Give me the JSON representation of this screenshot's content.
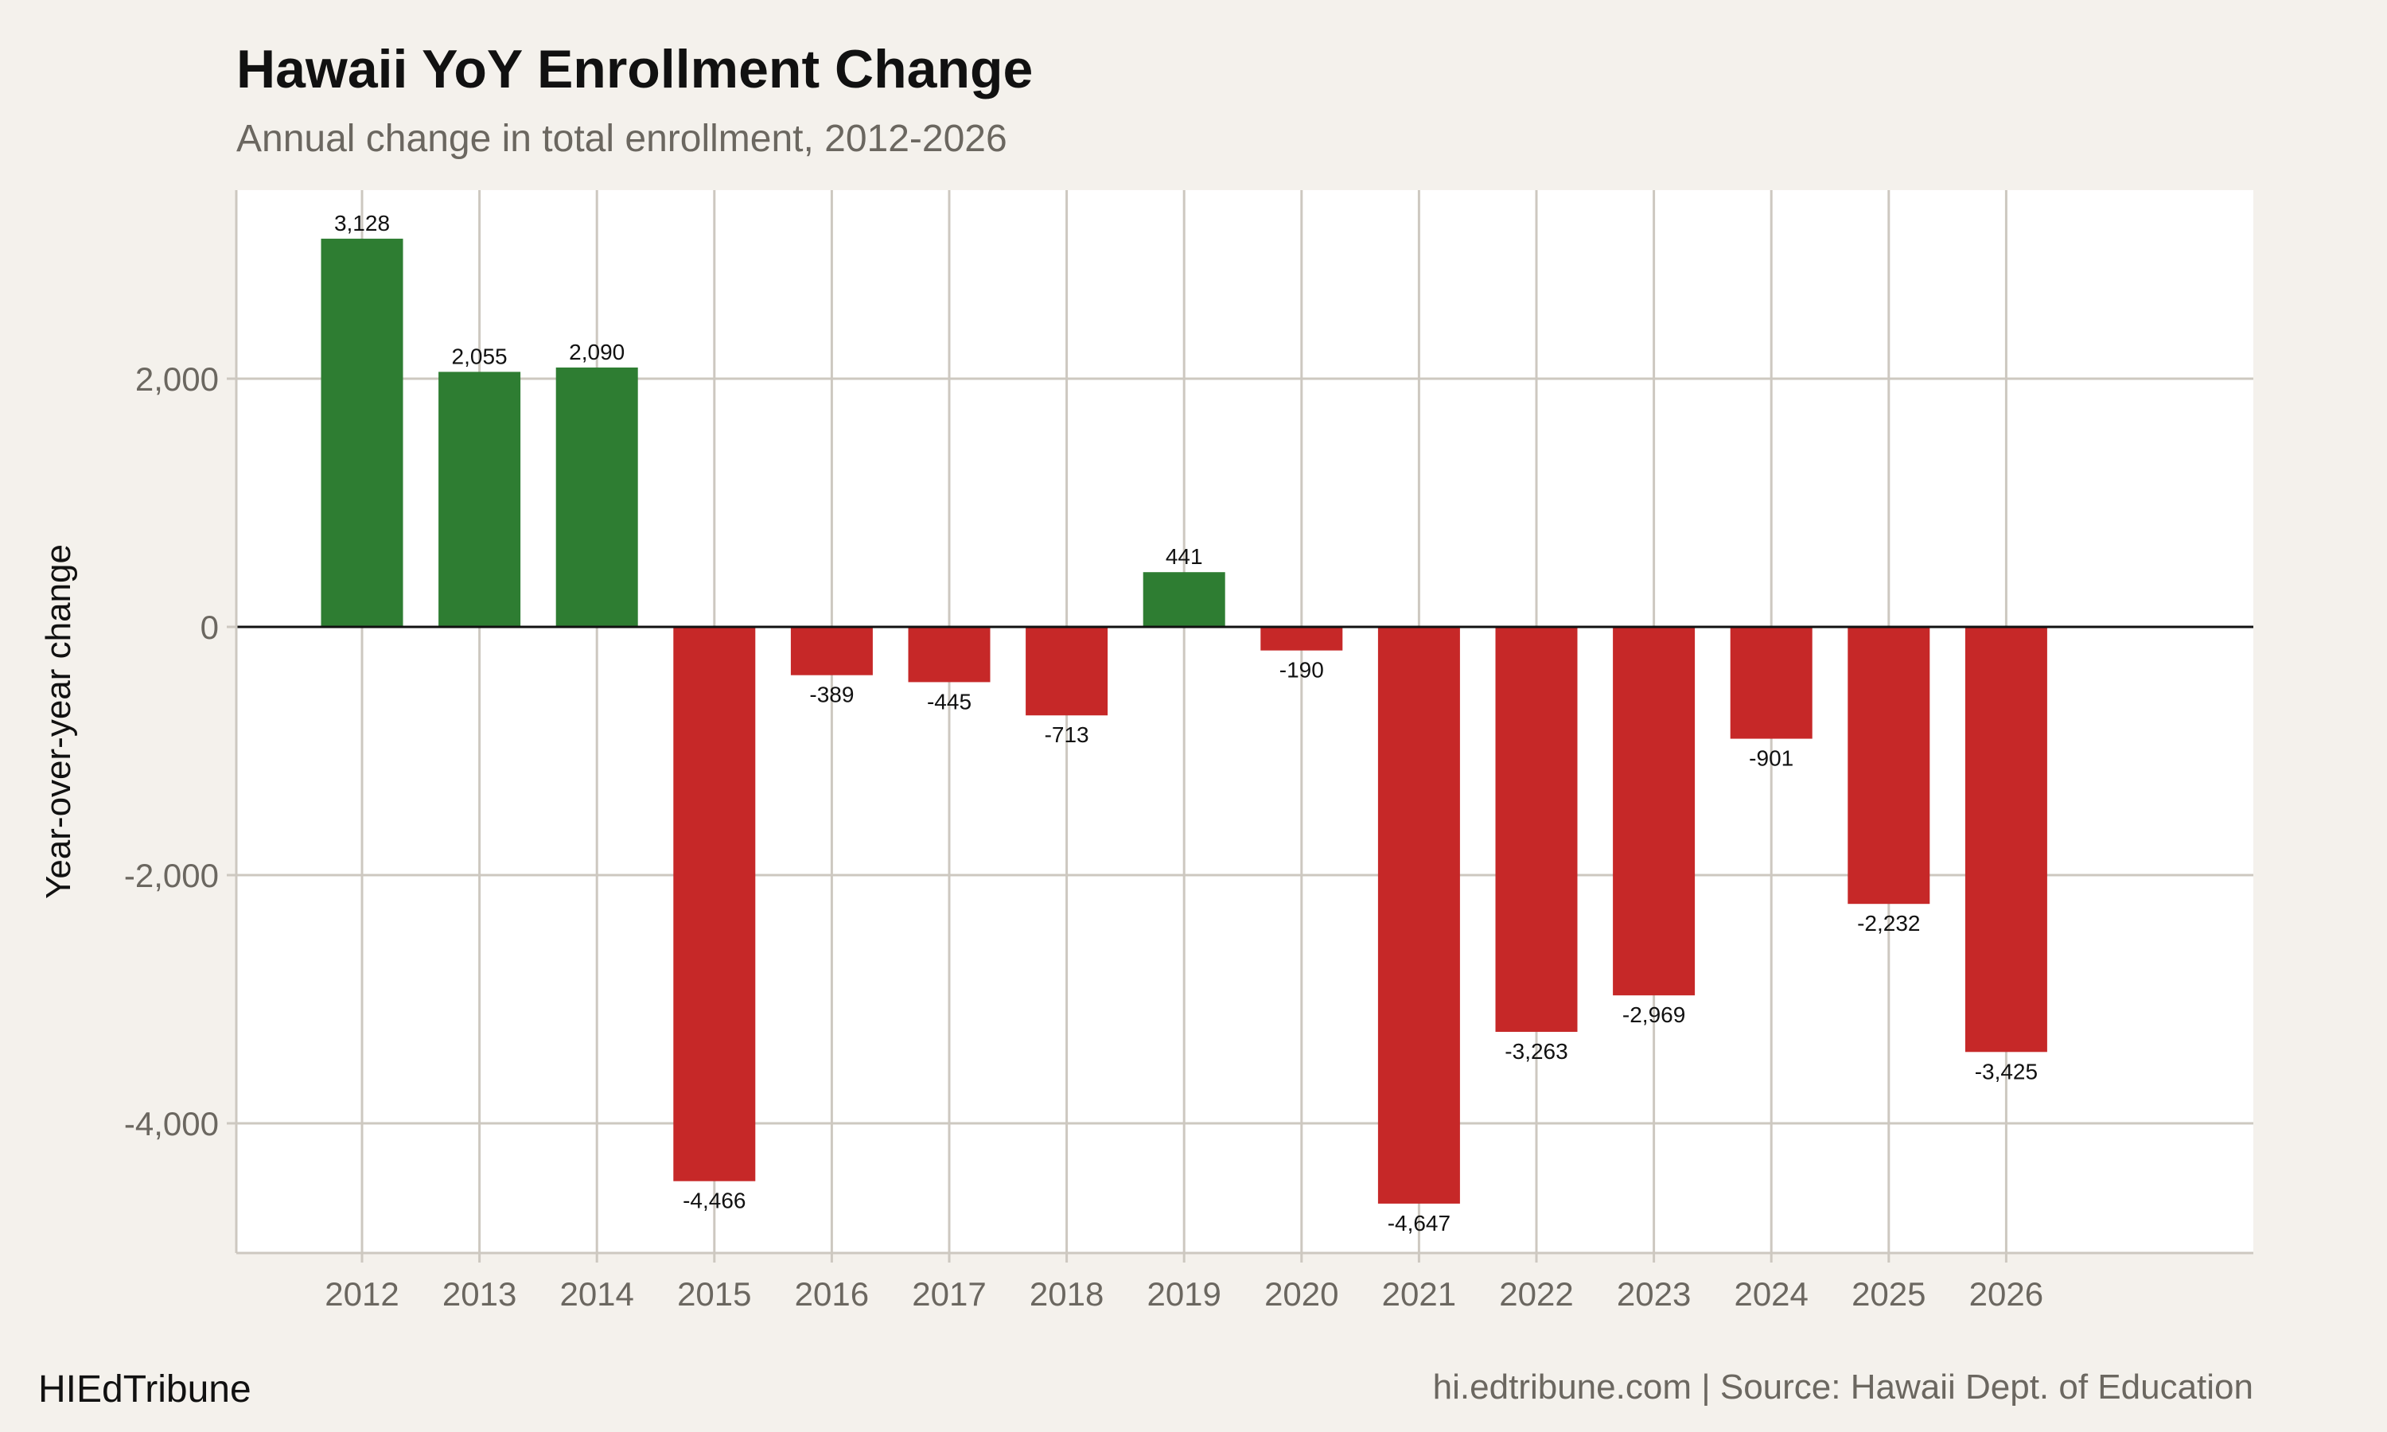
{
  "chart_data": {
    "type": "bar",
    "title": "Hawaii YoY Enrollment Change",
    "subtitle": "Annual change in total enrollment, 2012-2026",
    "xlabel": "",
    "ylabel": "Year-over-year change",
    "categories": [
      "2012",
      "2013",
      "2014",
      "2015",
      "2016",
      "2017",
      "2018",
      "2019",
      "2020",
      "2021",
      "2022",
      "2023",
      "2024",
      "2025",
      "2026"
    ],
    "values": [
      3128,
      2055,
      2090,
      -4466,
      -389,
      -445,
      -713,
      441,
      -190,
      -4647,
      -3263,
      -2969,
      -901,
      -2232,
      -3425
    ],
    "data_labels": [
      "3,128",
      "2,055",
      "2,090",
      "-4,466",
      "-389",
      "-445",
      "-713",
      "441",
      "-190",
      "-4,647",
      "-3,263",
      "-2,969",
      "-901",
      "-2,232",
      "-3,425"
    ],
    "yticks": [
      2000,
      0,
      -2000,
      -4000
    ],
    "ytick_labels": [
      "2,000",
      "0",
      "-2,000",
      "-4,000"
    ],
    "ylim": [
      -5045,
      3520
    ],
    "grid": true,
    "colors": {
      "positive": "#2e7d32",
      "negative": "#c62828",
      "panel": "#ffffff",
      "background": "#f4f1ec",
      "grid": "#cdc8c0"
    }
  },
  "footer": {
    "brand": "HIEdTribune",
    "source": "hi.edtribune.com | Source: Hawaii Dept. of Education"
  }
}
